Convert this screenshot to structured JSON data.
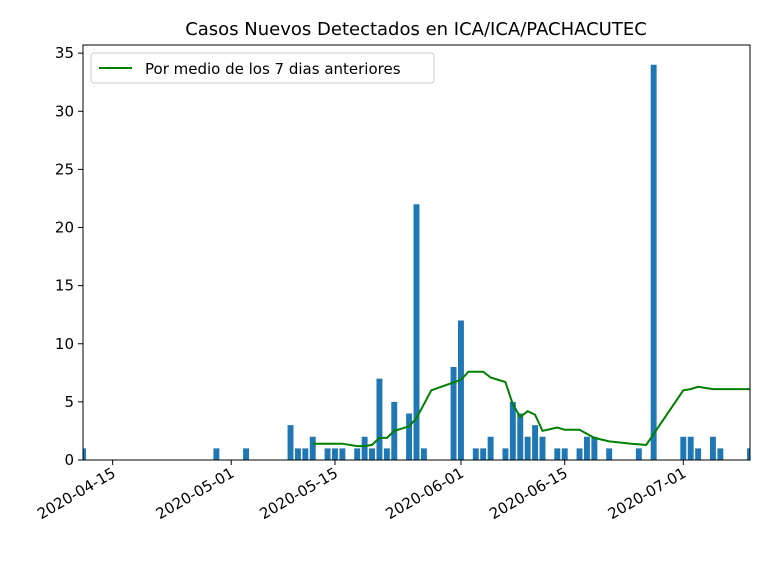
{
  "chart_data": {
    "type": "bar",
    "title": "Casos Nuevos Detectados en ICA/ICA/PACHACUTEC",
    "xlabel": "",
    "ylabel": "",
    "x_range": [
      "2020-04-11",
      "2020-07-10"
    ],
    "ylim": [
      0,
      35.7
    ],
    "grid": false,
    "legend_position": "top-left",
    "x_tick_labels": [
      "2020-04-15",
      "2020-05-01",
      "2020-05-15",
      "2020-06-01",
      "2020-06-15",
      "2020-07-01"
    ],
    "y_tick_labels": [
      "0",
      "5",
      "10",
      "15",
      "20",
      "25",
      "30",
      "35"
    ],
    "bar_color": "#1f77b4",
    "line_color": "#008000",
    "series": [
      {
        "type": "bar",
        "dates": [
          "2020-04-11",
          "2020-04-29",
          "2020-05-03",
          "2020-05-09",
          "2020-05-10",
          "2020-05-11",
          "2020-05-12",
          "2020-05-14",
          "2020-05-15",
          "2020-05-16",
          "2020-05-18",
          "2020-05-19",
          "2020-05-20",
          "2020-05-21",
          "2020-05-22",
          "2020-05-23",
          "2020-05-25",
          "2020-05-26",
          "2020-05-27",
          "2020-05-31",
          "2020-06-01",
          "2020-06-03",
          "2020-06-04",
          "2020-06-05",
          "2020-06-07",
          "2020-06-08",
          "2020-06-09",
          "2020-06-10",
          "2020-06-11",
          "2020-06-12",
          "2020-06-14",
          "2020-06-15",
          "2020-06-17",
          "2020-06-18",
          "2020-06-19",
          "2020-06-21",
          "2020-06-25",
          "2020-06-27",
          "2020-07-01",
          "2020-07-02",
          "2020-07-03",
          "2020-07-05",
          "2020-07-06",
          "2020-07-10"
        ],
        "values": [
          1,
          1,
          1,
          3,
          1,
          1,
          2,
          1,
          1,
          1,
          1,
          2,
          1,
          7,
          1,
          5,
          4,
          22,
          1,
          8,
          12,
          1,
          1,
          2,
          1,
          5,
          4,
          2,
          3,
          2,
          1,
          1,
          1,
          2,
          2,
          1,
          1,
          34,
          2,
          2,
          1,
          2,
          1,
          1
        ]
      },
      {
        "type": "line",
        "name": "Por medio de los 7 dias anteriores",
        "dates": [
          "2020-05-12",
          "2020-05-16",
          "2020-05-18",
          "2020-05-19",
          "2020-05-20",
          "2020-05-21",
          "2020-05-22",
          "2020-05-23",
          "2020-05-25",
          "2020-05-26",
          "2020-05-28",
          "2020-06-01",
          "2020-06-02",
          "2020-06-03",
          "2020-06-04",
          "2020-06-05",
          "2020-06-07",
          "2020-06-08",
          "2020-06-09",
          "2020-06-10",
          "2020-06-11",
          "2020-06-12",
          "2020-06-14",
          "2020-06-15",
          "2020-06-17",
          "2020-06-19",
          "2020-06-21",
          "2020-06-24",
          "2020-06-26",
          "2020-07-01",
          "2020-07-02",
          "2020-07-03",
          "2020-07-05",
          "2020-07-10"
        ],
        "values": [
          1.4,
          1.4,
          1.2,
          1.2,
          1.3,
          1.9,
          1.9,
          2.5,
          2.9,
          3.6,
          6.0,
          6.9,
          7.6,
          7.6,
          7.6,
          7.1,
          6.7,
          4.8,
          3.7,
          4.2,
          3.9,
          2.5,
          2.8,
          2.6,
          2.6,
          1.9,
          1.6,
          1.4,
          1.3,
          6.0,
          6.1,
          6.3,
          6.1,
          6.1
        ]
      }
    ]
  }
}
